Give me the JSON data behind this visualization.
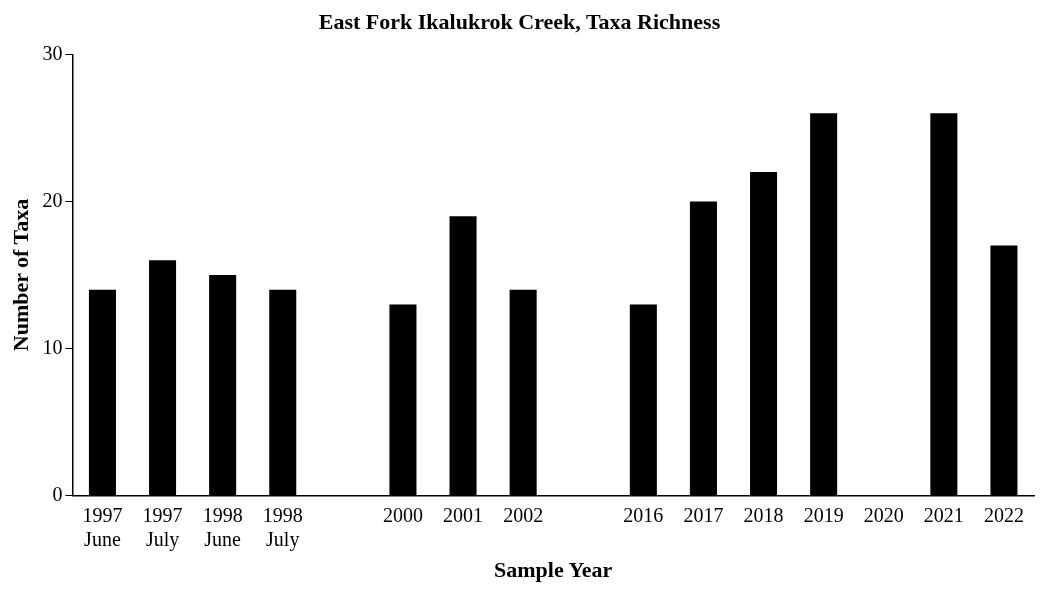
{
  "chart_data": {
    "type": "bar",
    "title": "East Fork Ikalukrok Creek, Taxa Richness",
    "xlabel": "Sample Year",
    "ylabel": "Number of Taxa",
    "categories": [
      "1997 June",
      "1997 July",
      "1998 June",
      "1998 July",
      null,
      "2000",
      "2001",
      "2002",
      null,
      "2016",
      "2017",
      "2018",
      "2019",
      "2020",
      "2021",
      "2022"
    ],
    "values": [
      14,
      16,
      15,
      14,
      null,
      13,
      19,
      14,
      null,
      13,
      20,
      22,
      26,
      null,
      26,
      17
    ],
    "color": "#000000",
    "ylim": [
      0,
      30
    ],
    "yticks": [
      0,
      10,
      20,
      30
    ],
    "grid": false,
    "legend": false
  }
}
